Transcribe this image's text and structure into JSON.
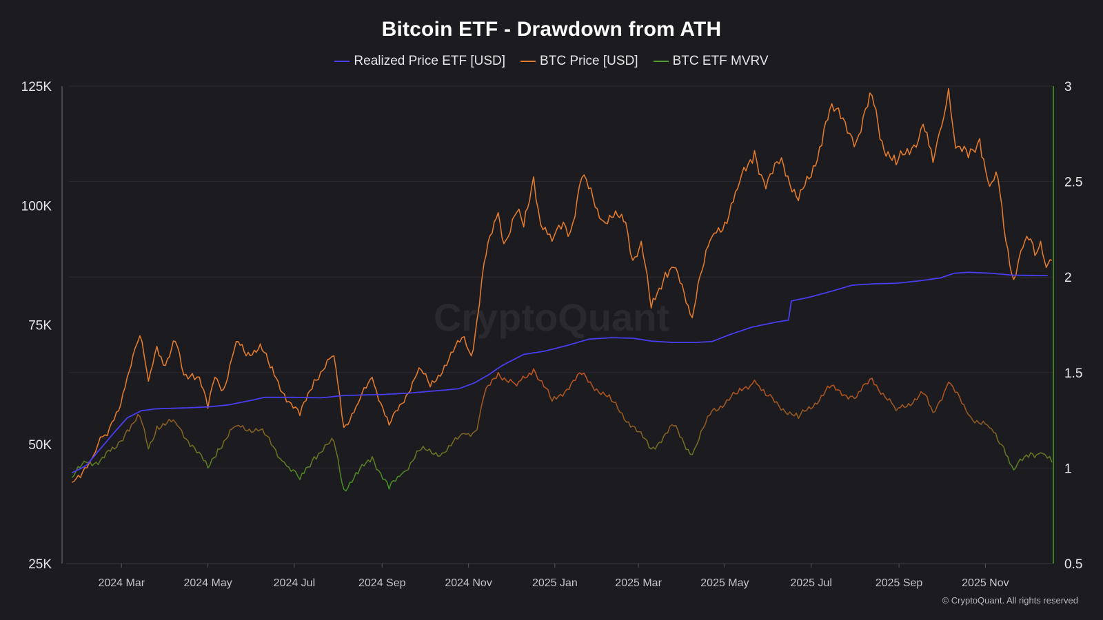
{
  "title": "Bitcoin ETF - Drawdown from ATH",
  "watermark": "CryptoQuant",
  "credit": "© CryptoQuant. All rights reserved",
  "legend": [
    {
      "label": "Realized Price ETF [USD]",
      "color": "#4a3df0"
    },
    {
      "label": "BTC Price [USD]",
      "color": "#e07a2e"
    },
    {
      "label": "BTC ETF MVRV",
      "color": "#4fa02c"
    }
  ],
  "chart_data": {
    "type": "line",
    "title": "Bitcoin ETF - Drawdown from ATH",
    "x_tick_labels": [
      "2024 Mar",
      "2024 May",
      "2024 Jul",
      "2024 Sep",
      "2024 Nov",
      "2025 Jan",
      "2025 Mar",
      "2025 May",
      "2025 Jul",
      "2025 Sep",
      "2025 Nov"
    ],
    "x_tick_dates": [
      "2024-03-01",
      "2024-05-01",
      "2024-07-01",
      "2024-09-01",
      "2024-11-01",
      "2025-01-01",
      "2025-03-01",
      "2025-05-01",
      "2025-07-01",
      "2025-09-01",
      "2025-11-01"
    ],
    "xlim": [
      "2024-01-19",
      "2025-12-19"
    ],
    "y_left": {
      "ticks": [
        25000,
        50000,
        75000,
        100000,
        125000
      ],
      "tick_labels": [
        "25K",
        "50K",
        "75K",
        "100K",
        "125K"
      ],
      "ylim": [
        25000,
        125000
      ]
    },
    "y_right": {
      "ticks": [
        0.5,
        1,
        1.5,
        2,
        2.5,
        3
      ],
      "tick_labels": [
        "0.5",
        "1",
        "1.5",
        "2",
        "2.5",
        "3"
      ],
      "ylim": [
        0.5,
        3
      ]
    },
    "grid": true,
    "legend_position": "top-center",
    "series": [
      {
        "name": "Realized Price ETF [USD]",
        "axis": "left",
        "color": "#4a3df0",
        "points": [
          [
            "2024-01-26",
            44000
          ],
          [
            "2024-02-05",
            45500
          ],
          [
            "2024-02-15",
            49000
          ],
          [
            "2024-02-25",
            52500
          ],
          [
            "2024-03-05",
            55500
          ],
          [
            "2024-03-15",
            57000
          ],
          [
            "2024-03-25",
            57400
          ],
          [
            "2024-04-15",
            57600
          ],
          [
            "2024-05-01",
            57800
          ],
          [
            "2024-05-15",
            58200
          ],
          [
            "2024-06-01",
            59200
          ],
          [
            "2024-06-10",
            59800
          ],
          [
            "2024-07-01",
            59800
          ],
          [
            "2024-07-20",
            59700
          ],
          [
            "2024-08-05",
            60200
          ],
          [
            "2024-09-01",
            60400
          ],
          [
            "2024-09-20",
            60700
          ],
          [
            "2024-10-10",
            61200
          ],
          [
            "2024-10-25",
            61600
          ],
          [
            "2024-11-05",
            62800
          ],
          [
            "2024-11-15",
            64500
          ],
          [
            "2024-11-25",
            66500
          ],
          [
            "2024-12-10",
            68800
          ],
          [
            "2024-12-25",
            69500
          ],
          [
            "2025-01-10",
            70700
          ],
          [
            "2025-01-25",
            72000
          ],
          [
            "2025-02-10",
            72300
          ],
          [
            "2025-02-25",
            72200
          ],
          [
            "2025-03-10",
            71600
          ],
          [
            "2025-03-25",
            71300
          ],
          [
            "2025-04-10",
            71300
          ],
          [
            "2025-04-22",
            71500
          ],
          [
            "2025-05-05",
            73000
          ],
          [
            "2025-05-20",
            74500
          ],
          [
            "2025-06-05",
            75500
          ],
          [
            "2025-06-15",
            76000
          ],
          [
            "2025-06-17",
            80000
          ],
          [
            "2025-06-30",
            80800
          ],
          [
            "2025-07-15",
            82000
          ],
          [
            "2025-07-30",
            83300
          ],
          [
            "2025-08-15",
            83600
          ],
          [
            "2025-08-30",
            83700
          ],
          [
            "2025-09-15",
            84200
          ],
          [
            "2025-09-30",
            84800
          ],
          [
            "2025-10-10",
            85800
          ],
          [
            "2025-10-20",
            86000
          ],
          [
            "2025-11-05",
            85800
          ],
          [
            "2025-11-20",
            85400
          ],
          [
            "2025-12-15",
            85300
          ]
        ]
      },
      {
        "name": "BTC Price [USD]",
        "axis": "left",
        "color": "#e07a2e",
        "points": [
          [
            "2024-01-26",
            42000
          ],
          [
            "2024-02-01",
            43000
          ],
          [
            "2024-02-10",
            47500
          ],
          [
            "2024-02-15",
            51500
          ],
          [
            "2024-02-20",
            51800
          ],
          [
            "2024-02-28",
            57000
          ],
          [
            "2024-03-05",
            64000
          ],
          [
            "2024-03-09",
            68500
          ],
          [
            "2024-03-14",
            72700
          ],
          [
            "2024-03-20",
            63200
          ],
          [
            "2024-03-26",
            70500
          ],
          [
            "2024-04-01",
            66500
          ],
          [
            "2024-04-08",
            71500
          ],
          [
            "2024-04-14",
            64500
          ],
          [
            "2024-04-20",
            64800
          ],
          [
            "2024-04-25",
            64000
          ],
          [
            "2024-05-01",
            57500
          ],
          [
            "2024-05-06",
            64000
          ],
          [
            "2024-05-12",
            61500
          ],
          [
            "2024-05-21",
            71500
          ],
          [
            "2024-05-28",
            68500
          ],
          [
            "2024-06-07",
            71000
          ],
          [
            "2024-06-14",
            66000
          ],
          [
            "2024-06-24",
            60500
          ],
          [
            "2024-07-05",
            56000
          ],
          [
            "2024-07-15",
            63500
          ],
          [
            "2024-07-29",
            68500
          ],
          [
            "2024-08-05",
            53500
          ],
          [
            "2024-08-15",
            58500
          ],
          [
            "2024-08-25",
            64000
          ],
          [
            "2024-09-06",
            54000
          ],
          [
            "2024-09-15",
            58500
          ],
          [
            "2024-09-27",
            66000
          ],
          [
            "2024-10-05",
            62000
          ],
          [
            "2024-10-15",
            66500
          ],
          [
            "2024-10-29",
            72500
          ],
          [
            "2024-11-03",
            68500
          ],
          [
            "2024-11-07",
            76000
          ],
          [
            "2024-11-12",
            88000
          ],
          [
            "2024-11-22",
            98500
          ],
          [
            "2024-11-26",
            92000
          ],
          [
            "2024-12-05",
            98500
          ],
          [
            "2024-12-10",
            95500
          ],
          [
            "2024-12-17",
            106000
          ],
          [
            "2024-12-22",
            96000
          ],
          [
            "2024-12-30",
            92500
          ],
          [
            "2025-01-07",
            96500
          ],
          [
            "2025-01-12",
            94500
          ],
          [
            "2025-01-20",
            105800
          ],
          [
            "2025-01-28",
            101500
          ],
          [
            "2025-02-03",
            97000
          ],
          [
            "2025-02-10",
            97500
          ],
          [
            "2025-02-20",
            96500
          ],
          [
            "2025-02-25",
            88500
          ],
          [
            "2025-03-03",
            92500
          ],
          [
            "2025-03-10",
            78500
          ],
          [
            "2025-03-20",
            86000
          ],
          [
            "2025-03-26",
            87000
          ],
          [
            "2025-04-08",
            76500
          ],
          [
            "2025-04-12",
            83500
          ],
          [
            "2025-04-22",
            93500
          ],
          [
            "2025-05-01",
            96500
          ],
          [
            "2025-05-10",
            103500
          ],
          [
            "2025-05-22",
            111500
          ],
          [
            "2025-05-30",
            103500
          ],
          [
            "2025-06-10",
            110000
          ],
          [
            "2025-06-22",
            101000
          ],
          [
            "2025-07-01",
            106000
          ],
          [
            "2025-07-10",
            116000
          ],
          [
            "2025-07-14",
            120000
          ],
          [
            "2025-07-25",
            117500
          ],
          [
            "2025-08-02",
            113500
          ],
          [
            "2025-08-13",
            123000
          ],
          [
            "2025-08-20",
            113500
          ],
          [
            "2025-08-30",
            108500
          ],
          [
            "2025-09-10",
            112000
          ],
          [
            "2025-09-18",
            117000
          ],
          [
            "2025-09-25",
            109000
          ],
          [
            "2025-10-01",
            116500
          ],
          [
            "2025-10-06",
            124500
          ],
          [
            "2025-10-11",
            112000
          ],
          [
            "2025-10-20",
            110000
          ],
          [
            "2025-10-28",
            114000
          ],
          [
            "2025-11-04",
            104000
          ],
          [
            "2025-11-10",
            105500
          ],
          [
            "2025-11-14",
            95500
          ],
          [
            "2025-11-21",
            84500
          ],
          [
            "2025-11-26",
            90500
          ],
          [
            "2025-12-03",
            93000
          ],
          [
            "2025-12-06",
            89500
          ],
          [
            "2025-12-10",
            92500
          ],
          [
            "2025-12-14",
            87000
          ],
          [
            "2025-12-18",
            88500
          ]
        ]
      },
      {
        "name": "BTC ETF MVRV",
        "axis": "right",
        "color": "#4fa02c",
        "points": [
          [
            "2024-01-26",
            0.95
          ],
          [
            "2024-02-05",
            1.03
          ],
          [
            "2024-02-15",
            1.04
          ],
          [
            "2024-02-25",
            1.1
          ],
          [
            "2024-03-05",
            1.2
          ],
          [
            "2024-03-14",
            1.27
          ],
          [
            "2024-03-20",
            1.1
          ],
          [
            "2024-03-26",
            1.22
          ],
          [
            "2024-04-08",
            1.24
          ],
          [
            "2024-04-20",
            1.12
          ],
          [
            "2024-05-01",
            1.0
          ],
          [
            "2024-05-08",
            1.1
          ],
          [
            "2024-05-21",
            1.22
          ],
          [
            "2024-06-07",
            1.2
          ],
          [
            "2024-06-24",
            1.03
          ],
          [
            "2024-07-05",
            0.94
          ],
          [
            "2024-07-15",
            1.06
          ],
          [
            "2024-07-29",
            1.14
          ],
          [
            "2024-08-05",
            0.89
          ],
          [
            "2024-08-15",
            0.97
          ],
          [
            "2024-08-25",
            1.06
          ],
          [
            "2024-09-06",
            0.89
          ],
          [
            "2024-09-15",
            0.97
          ],
          [
            "2024-09-27",
            1.09
          ],
          [
            "2024-10-15",
            1.08
          ],
          [
            "2024-10-29",
            1.18
          ],
          [
            "2024-11-07",
            1.2
          ],
          [
            "2024-11-12",
            1.38
          ],
          [
            "2024-11-22",
            1.5
          ],
          [
            "2024-12-05",
            1.43
          ],
          [
            "2024-12-17",
            1.52
          ],
          [
            "2024-12-30",
            1.35
          ],
          [
            "2025-01-20",
            1.49
          ],
          [
            "2025-02-10",
            1.35
          ],
          [
            "2025-02-25",
            1.22
          ],
          [
            "2025-03-10",
            1.1
          ],
          [
            "2025-03-26",
            1.22
          ],
          [
            "2025-04-08",
            1.07
          ],
          [
            "2025-04-22",
            1.3
          ],
          [
            "2025-05-10",
            1.39
          ],
          [
            "2025-05-22",
            1.46
          ],
          [
            "2025-05-30",
            1.38
          ],
          [
            "2025-06-22",
            1.26
          ],
          [
            "2025-07-14",
            1.42
          ],
          [
            "2025-08-02",
            1.37
          ],
          [
            "2025-08-13",
            1.47
          ],
          [
            "2025-08-30",
            1.3
          ],
          [
            "2025-09-18",
            1.39
          ],
          [
            "2025-09-25",
            1.29
          ],
          [
            "2025-10-06",
            1.45
          ],
          [
            "2025-10-20",
            1.28
          ],
          [
            "2025-11-04",
            1.21
          ],
          [
            "2025-11-14",
            1.11
          ],
          [
            "2025-11-21",
            0.99
          ],
          [
            "2025-12-03",
            1.08
          ],
          [
            "2025-12-10",
            1.08
          ],
          [
            "2025-12-18",
            1.03
          ]
        ]
      }
    ]
  }
}
